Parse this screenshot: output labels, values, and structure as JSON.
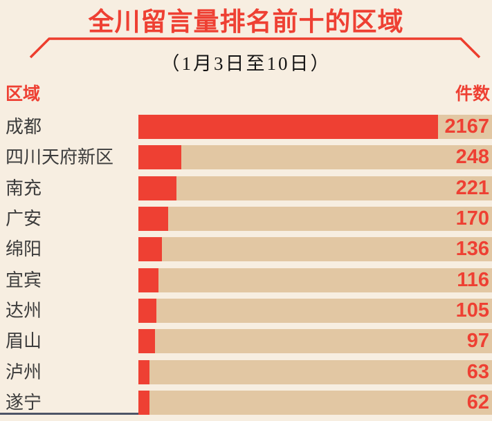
{
  "columns": {
    "region": "区域",
    "count": "件数"
  },
  "chart_data": {
    "type": "bar",
    "orientation": "horizontal",
    "title": "全川留言量排名前十的区域",
    "subtitle": "（1月3日至10日）",
    "categories": [
      "成都",
      "四川天府新区",
      "南充",
      "广安",
      "绵阳",
      "宜宾",
      "达州",
      "眉山",
      "泸州",
      "遂宁"
    ],
    "values": [
      2167,
      248,
      221,
      170,
      136,
      116,
      105,
      97,
      63,
      62
    ],
    "xlabel": "件数",
    "ylabel": "区域",
    "legend": false,
    "grid": false,
    "value_labels": "right-aligned",
    "note": "top bar visually capped so the value label fits"
  },
  "colors": {
    "accent_red": "#ee4033",
    "track_tan": "#e2c7a3",
    "background": "#f7eee1",
    "label_dark": "#3c3c3c"
  }
}
